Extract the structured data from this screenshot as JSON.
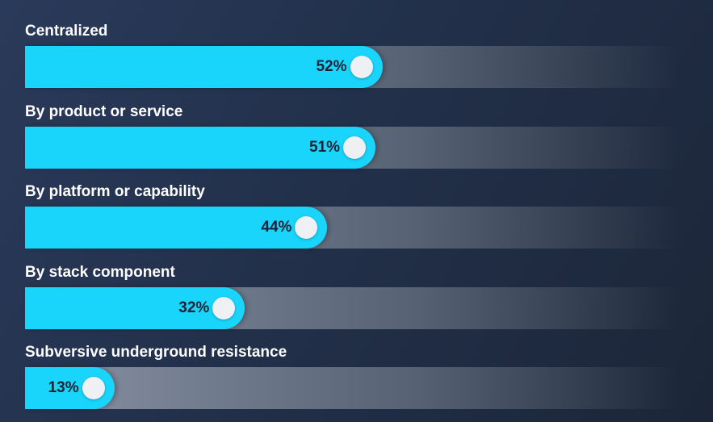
{
  "chart_data": {
    "type": "bar",
    "orientation": "horizontal",
    "categories": [
      "Centralized",
      "By product or service",
      "By platform or capability",
      "By stack component",
      "Subversive underground resistance"
    ],
    "values": [
      52,
      51,
      44,
      32,
      13
    ],
    "value_labels": [
      "52%",
      "51%",
      "44%",
      "32%",
      "13%"
    ],
    "xlim": [
      0,
      100
    ],
    "grid": false,
    "legend": "none"
  },
  "colors": {
    "bar": "#19d4fb",
    "knob": "#eef0f3",
    "label_text": "#ffffff",
    "value_text": "#1b2233"
  }
}
